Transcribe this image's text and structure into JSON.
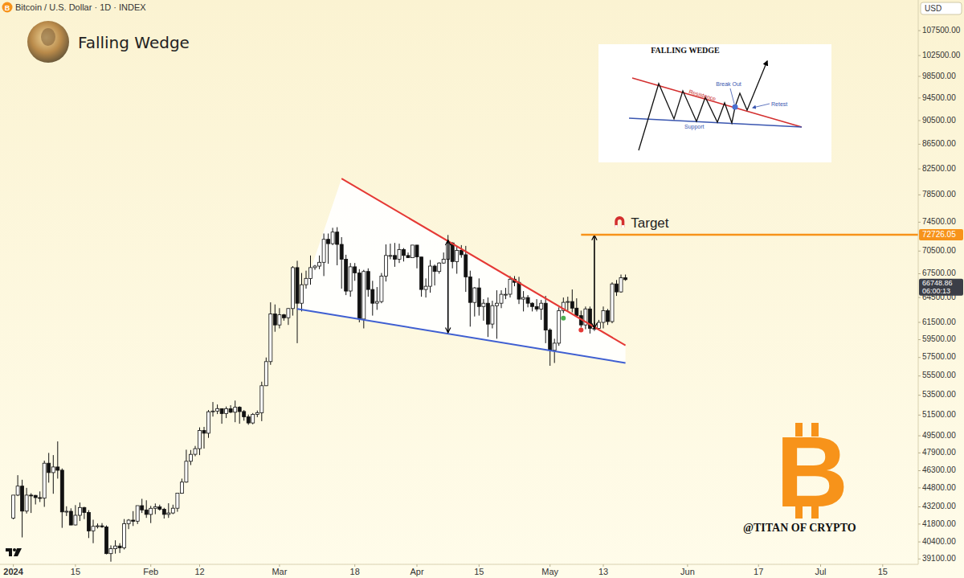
{
  "chart_data": {
    "type": "candlestick",
    "title": "Falling Wedge",
    "subtitle": "Bitcoin / U.S. Dollar · 1D · INDEX",
    "currency": "USD",
    "countdown": "06:00:13",
    "x": [
      "2024-01-01",
      "2024-01-02",
      "2024-01-03",
      "2024-01-04",
      "2024-01-05",
      "2024-01-06",
      "2024-01-07",
      "2024-01-08",
      "2024-01-09",
      "2024-01-10",
      "2024-01-11",
      "2024-01-12",
      "2024-01-13",
      "2024-01-14",
      "2024-01-15",
      "2024-01-16",
      "2024-01-17",
      "2024-01-18",
      "2024-01-19",
      "2024-01-20",
      "2024-01-21",
      "2024-01-22",
      "2024-01-23",
      "2024-01-24",
      "2024-01-25",
      "2024-01-26",
      "2024-01-27",
      "2024-01-28",
      "2024-01-29",
      "2024-01-30",
      "2024-01-31",
      "2024-02-01",
      "2024-02-02",
      "2024-02-03",
      "2024-02-04",
      "2024-02-05",
      "2024-02-06",
      "2024-02-07",
      "2024-02-08",
      "2024-02-09",
      "2024-02-10",
      "2024-02-11",
      "2024-02-12",
      "2024-02-13",
      "2024-02-14",
      "2024-02-15",
      "2024-02-16",
      "2024-02-17",
      "2024-02-18",
      "2024-02-19",
      "2024-02-20",
      "2024-02-21",
      "2024-02-22",
      "2024-02-23",
      "2024-02-24",
      "2024-02-25",
      "2024-02-26",
      "2024-02-27",
      "2024-02-28",
      "2024-02-29",
      "2024-03-01",
      "2024-03-02",
      "2024-03-03",
      "2024-03-04",
      "2024-03-05",
      "2024-03-06",
      "2024-03-07",
      "2024-03-08",
      "2024-03-09",
      "2024-03-10",
      "2024-03-11",
      "2024-03-12",
      "2024-03-13",
      "2024-03-14",
      "2024-03-15",
      "2024-03-16",
      "2024-03-17",
      "2024-03-18",
      "2024-03-19",
      "2024-03-20",
      "2024-03-21",
      "2024-03-22",
      "2024-03-23",
      "2024-03-24",
      "2024-03-25",
      "2024-03-26",
      "2024-03-27",
      "2024-03-28",
      "2024-03-29",
      "2024-03-30",
      "2024-03-31",
      "2024-04-01",
      "2024-04-02",
      "2024-04-03",
      "2024-04-04",
      "2024-04-05",
      "2024-04-06",
      "2024-04-07",
      "2024-04-08",
      "2024-04-09",
      "2024-04-10",
      "2024-04-11",
      "2024-04-12",
      "2024-04-13",
      "2024-04-14",
      "2024-04-15",
      "2024-04-16",
      "2024-04-17",
      "2024-04-18",
      "2024-04-19",
      "2024-04-20",
      "2024-04-21",
      "2024-04-22",
      "2024-04-23",
      "2024-04-24",
      "2024-04-25",
      "2024-04-26",
      "2024-04-27",
      "2024-04-28",
      "2024-04-29",
      "2024-04-30",
      "2024-05-01",
      "2024-05-02",
      "2024-05-03",
      "2024-05-04",
      "2024-05-05",
      "2024-05-06",
      "2024-05-07",
      "2024-05-08",
      "2024-05-09",
      "2024-05-10",
      "2024-05-11",
      "2024-05-12",
      "2024-05-13",
      "2024-05-14",
      "2024-05-15",
      "2024-05-16",
      "2024-05-17",
      "2024-05-18"
    ],
    "open": [
      42280,
      44180,
      44950,
      42850,
      44180,
      44160,
      43970,
      43930,
      46970,
      46130,
      46630,
      46340,
      42780,
      42840,
      41730,
      42510,
      43150,
      42740,
      41260,
      41620,
      41660,
      41580,
      39500,
      39870,
      40080,
      39940,
      41820,
      42120,
      42030,
      43300,
      42950,
      42580,
      43080,
      43200,
      43010,
      42580,
      42700,
      43090,
      44340,
      45300,
      47140,
      47770,
      48290,
      50000,
      49740,
      51830,
      51900,
      52140,
      51650,
      52130,
      51780,
      52280,
      51850,
      51320,
      50730,
      51570,
      51730,
      54480,
      57050,
      62500,
      61200,
      62400,
      62050,
      63150,
      68300,
      63800,
      66100,
      66900,
      68300,
      68500,
      69000,
      72100,
      71500,
      73100,
      71400,
      69400,
      65300,
      68400,
      67600,
      61900,
      67800,
      65500,
      63800,
      64000,
      67200,
      69900,
      69900,
      69400,
      70700,
      69900,
      69600,
      71300,
      69700,
      65500,
      65900,
      68500,
      67800,
      68900,
      69400,
      71600,
      69100,
      70600,
      70000,
      67100,
      63900,
      65700,
      63400,
      63800,
      61300,
      63500,
      63800,
      64900,
      64900,
      66800,
      66400,
      64300,
      64500,
      63800,
      63400,
      63100,
      63800,
      60600,
      58300,
      59100,
      62900,
      63900,
      64000,
      63200,
      62300,
      61200,
      63100,
      60800,
      60800,
      61500,
      62900,
      61600,
      66200,
      65200,
      67000
    ],
    "high": [
      44180,
      45900,
      45500,
      44800,
      44350,
      44200,
      44500,
      47200,
      47900,
      47700,
      48970,
      46500,
      43250,
      43080,
      43350,
      43560,
      43200,
      42930,
      42150,
      41850,
      41880,
      41690,
      40130,
      40520,
      40300,
      42200,
      42200,
      42850,
      43300,
      43870,
      43750,
      43280,
      43480,
      43380,
      43120,
      43500,
      43380,
      44340,
      45600,
      48200,
      48170,
      48550,
      50300,
      50350,
      52000,
      52800,
      52550,
      52150,
      52350,
      52480,
      52950,
      52370,
      52000,
      51550,
      51700,
      51950,
      54900,
      57500,
      63900,
      63650,
      63200,
      62500,
      63200,
      68500,
      69200,
      67600,
      67900,
      69900,
      68650,
      69900,
      72900,
      72900,
      73700,
      73800,
      72400,
      70000,
      68900,
      68900,
      68100,
      68000,
      68200,
      66600,
      65800,
      67600,
      71400,
      71500,
      71600,
      71500,
      70900,
      70300,
      71300,
      71300,
      69700,
      66900,
      69300,
      68700,
      69000,
      70300,
      72700,
      71700,
      71100,
      71300,
      71200,
      67900,
      65800,
      66900,
      64300,
      64500,
      64100,
      65400,
      65400,
      65700,
      67200,
      67200,
      67100,
      65300,
      64800,
      63900,
      64300,
      64200,
      64700,
      60800,
      59600,
      63300,
      64500,
      64600,
      65500,
      64400,
      62900,
      63400,
      63400,
      61500,
      61800,
      63400,
      63100,
      66400,
      66700,
      67400,
      67400
    ],
    "low": [
      42180,
      44100,
      40750,
      42650,
      42700,
      43400,
      43600,
      43200,
      45250,
      44300,
      45600,
      41500,
      42450,
      41720,
      41700,
      42050,
      42200,
      40700,
      40300,
      41450,
      41500,
      39450,
      38900,
      39500,
      39550,
      39820,
      41400,
      41650,
      41800,
      42700,
      42300,
      41880,
      42600,
      42900,
      42250,
      42300,
      42600,
      42800,
      44300,
      45250,
      46800,
      47600,
      47700,
      48300,
      49300,
      51350,
      51600,
      50650,
      51200,
      51700,
      50800,
      50650,
      50950,
      50550,
      50600,
      51300,
      50900,
      54450,
      56700,
      60400,
      60800,
      61700,
      61200,
      62300,
      59100,
      62800,
      65600,
      66100,
      68000,
      68100,
      67200,
      68800,
      71300,
      68600,
      65600,
      64800,
      64600,
      66600,
      61500,
      60800,
      64600,
      62300,
      63000,
      63800,
      66500,
      69400,
      68400,
      68900,
      69100,
      69600,
      69600,
      68200,
      64600,
      64500,
      65100,
      66000,
      67500,
      68800,
      69100,
      68200,
      67500,
      69600,
      65200,
      61000,
      62200,
      62300,
      61700,
      59800,
      60800,
      59600,
      63200,
      64300,
      64500,
      65900,
      63700,
      62800,
      63300,
      62800,
      62800,
      61800,
      59100,
      56600,
      56900,
      58800,
      62600,
      62900,
      62700,
      62200,
      60900,
      60700,
      60200,
      60500,
      60700,
      60800,
      61200,
      61400,
      64700,
      65100,
      66600
    ],
    "close": [
      44180,
      44950,
      42850,
      44180,
      44160,
      43970,
      43930,
      46970,
      46130,
      46630,
      46340,
      42780,
      42840,
      41730,
      42510,
      43150,
      42740,
      41260,
      41620,
      41660,
      41580,
      39500,
      39870,
      40080,
      39940,
      41820,
      42120,
      42030,
      43300,
      42950,
      42580,
      43080,
      43200,
      43010,
      42580,
      42700,
      43090,
      44340,
      45300,
      47140,
      47770,
      48290,
      50000,
      49740,
      51830,
      51900,
      52140,
      51650,
      52130,
      51780,
      52280,
      51850,
      51320,
      50730,
      51570,
      51730,
      54480,
      57050,
      62500,
      61200,
      62400,
      62050,
      63150,
      68300,
      63800,
      66100,
      66900,
      68300,
      68500,
      69000,
      72100,
      71500,
      73100,
      71400,
      69400,
      65300,
      68400,
      67600,
      61900,
      67800,
      65500,
      63800,
      64000,
      67200,
      69900,
      69900,
      69400,
      70700,
      69900,
      69600,
      71300,
      69700,
      65500,
      65900,
      68500,
      67800,
      68900,
      69400,
      71600,
      69100,
      70600,
      70000,
      67100,
      63900,
      65700,
      63400,
      63800,
      61300,
      63500,
      63800,
      64900,
      64900,
      66800,
      66400,
      64300,
      64500,
      63800,
      63400,
      63100,
      63800,
      60600,
      58300,
      59100,
      62900,
      63900,
      64000,
      63200,
      62300,
      61200,
      63100,
      60800,
      60800,
      61500,
      62900,
      61600,
      66200,
      65200,
      67000,
      66748.86
    ],
    "log": "y",
    "grid": false,
    "xlim": [
      "2023-12-29",
      "2024-07-23"
    ],
    "ylim": [
      38700,
      114000
    ],
    "xticks": [
      {
        "value": "2024-01-01",
        "label": "2024"
      },
      {
        "value": "2024-01-15",
        "label": "15"
      },
      {
        "value": "2024-02-01",
        "label": "Feb"
      },
      {
        "value": "2024-02-12",
        "label": "12"
      },
      {
        "value": "2024-03-01",
        "label": "Mar"
      },
      {
        "value": "2024-03-18",
        "label": "18"
      },
      {
        "value": "2024-04-01",
        "label": "Apr"
      },
      {
        "value": "2024-04-15",
        "label": "15"
      },
      {
        "value": "2024-05-01",
        "label": "May"
      },
      {
        "value": "2024-05-13",
        "label": "13"
      },
      {
        "value": "2024-06-01",
        "label": "Jun"
      },
      {
        "value": "2024-06-17",
        "label": "17"
      },
      {
        "value": "2024-07-01",
        "label": "Jul"
      },
      {
        "value": "2024-07-15",
        "label": "15"
      }
    ],
    "yticks": [
      {
        "value": 39100,
        "label": "39100.00"
      },
      {
        "value": 40400,
        "label": "40400.00"
      },
      {
        "value": 41800,
        "label": "41800.00"
      },
      {
        "value": 43200,
        "label": "43200.00"
      },
      {
        "value": 44800,
        "label": "44800.00"
      },
      {
        "value": 46300,
        "label": "46300.00"
      },
      {
        "value": 47900,
        "label": "47900.00"
      },
      {
        "value": 49500,
        "label": "49500.00"
      },
      {
        "value": 51500,
        "label": "51500.00"
      },
      {
        "value": 53500,
        "label": "53500.00"
      },
      {
        "value": 55500,
        "label": "55500.00"
      },
      {
        "value": 57500,
        "label": "57500.00"
      },
      {
        "value": 59500,
        "label": "59500.00"
      },
      {
        "value": 61500,
        "label": "61500.00"
      },
      {
        "value": 64500,
        "label": "64500.00"
      },
      {
        "value": 67500,
        "label": "67500.00"
      },
      {
        "value": 70500,
        "label": "70500.00"
      },
      {
        "value": 74500,
        "label": "74500.00"
      },
      {
        "value": 78500,
        "label": "78500.00"
      },
      {
        "value": 82500,
        "label": "82500.00"
      },
      {
        "value": 86500,
        "label": "86500.00"
      },
      {
        "value": 90500,
        "label": "90500.00"
      },
      {
        "value": 94500,
        "label": "94500.00"
      },
      {
        "value": 98500,
        "label": "98500.00"
      },
      {
        "value": 102500,
        "label": "102500.00"
      },
      {
        "value": 107500,
        "label": "107500.00"
      }
    ],
    "annotations": {
      "resistance": {
        "x": [
          "2024-03-15",
          "2024-05-18"
        ],
        "y": [
          81000,
          58850
        ],
        "color": "#e53935"
      },
      "support": {
        "x": [
          "2024-03-05",
          "2024-05-18"
        ],
        "y": [
          63100,
          56900
        ],
        "color": "#3f5fd1"
      },
      "measure_arrows": [
        {
          "x": "2024-04-08",
          "y": [
            72000,
            60300
          ]
        },
        {
          "x": "2024-05-11",
          "y": [
            72700,
            60800
          ]
        }
      ],
      "target": {
        "label": "Target",
        "value": 72726.05,
        "x_start": "2024-05-08",
        "color": "#f7931a"
      },
      "signals": [
        {
          "x": "2024-05-04",
          "y": 62000,
          "color": "#4caf50"
        },
        {
          "x": "2024-05-08",
          "y": 60600,
          "color": "#e53935"
        }
      ]
    }
  },
  "inset": {
    "title": "FALLING WEDGE",
    "resistance": "Resistance",
    "support": "Support",
    "breakout": "Break Out",
    "retest": "Retest"
  },
  "watermark": "@TITAN OF CRYPTO",
  "logo": "B"
}
